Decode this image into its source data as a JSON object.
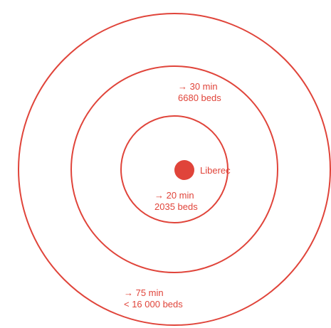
{
  "colors": {
    "accent": "#e0443a",
    "background": "#ffffff"
  },
  "center": {
    "label": "Liberec"
  },
  "zones": [
    {
      "name": "20-minute zone",
      "time_label": "→ 20 min",
      "beds_label": "2035 beds"
    },
    {
      "name": "30-minute zone",
      "time_label": "→ 30 min",
      "beds_label": "6680 beds"
    },
    {
      "name": "75-minute zone",
      "time_label": "→ 75 min",
      "beds_label": "< 16 000 beds"
    }
  ]
}
